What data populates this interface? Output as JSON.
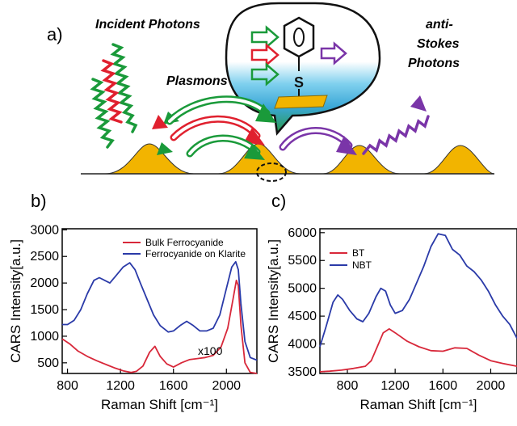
{
  "panel_a": {
    "label": "a)",
    "incident": "Incident Photons",
    "plasmons": "Plasmons",
    "anti_1": "anti-",
    "anti_2": "Stokes",
    "anti_3": "Photons",
    "linker": "S",
    "colors": {
      "green": "#1a9a3a",
      "red": "#e0202e",
      "purple": "#7a35a8",
      "gold": "#f2b400"
    }
  },
  "chart_data": [
    {
      "type": "line",
      "panel": "b)",
      "xlabel": "Raman Shift [cm⁻¹]",
      "ylabel": "CARS Intensity[a.u.]",
      "xlim": [
        760,
        2230
      ],
      "ylim": [
        300,
        3020
      ],
      "xticks": [
        "800",
        "1200",
        "1600",
        "2000"
      ],
      "yticks": [
        "500",
        "1000",
        "1500",
        "2000",
        "2500",
        "3000"
      ],
      "xtick_values": [
        800,
        1200,
        1600,
        2000
      ],
      "ytick_values": [
        500,
        1000,
        1500,
        2000,
        2500,
        3000
      ],
      "legend": "top-right",
      "annotation": "x100",
      "series": [
        {
          "name": "Bulk Ferrocyanide",
          "color": "#d8283a",
          "x": [
            760,
            820,
            880,
            950,
            1020,
            1100,
            1160,
            1220,
            1280,
            1320,
            1370,
            1420,
            1460,
            1500,
            1550,
            1600,
            1660,
            1720,
            1780,
            1840,
            1900,
            1960,
            2010,
            2050,
            2075,
            2090,
            2110,
            2140,
            2180,
            2230
          ],
          "y": [
            950,
            850,
            720,
            620,
            540,
            460,
            400,
            350,
            320,
            340,
            440,
            700,
            810,
            620,
            480,
            420,
            500,
            560,
            580,
            600,
            640,
            800,
            1150,
            1700,
            2050,
            1950,
            1200,
            500,
            320,
            300
          ]
        },
        {
          "name": "Ferrocyanide on Klarite",
          "color": "#2a3aa8",
          "x": [
            760,
            800,
            850,
            900,
            950,
            1000,
            1040,
            1080,
            1120,
            1170,
            1220,
            1270,
            1310,
            1350,
            1400,
            1450,
            1500,
            1560,
            1600,
            1650,
            1700,
            1750,
            1800,
            1850,
            1900,
            1950,
            2000,
            2040,
            2070,
            2090,
            2110,
            2140,
            2180,
            2230
          ],
          "y": [
            1220,
            1220,
            1300,
            1500,
            1800,
            2050,
            2100,
            2050,
            2000,
            2150,
            2300,
            2380,
            2250,
            2000,
            1700,
            1400,
            1200,
            1080,
            1100,
            1200,
            1280,
            1200,
            1100,
            1100,
            1150,
            1400,
            1900,
            2300,
            2400,
            2250,
            1600,
            900,
            600,
            550
          ]
        }
      ]
    },
    {
      "type": "line",
      "panel": "c)",
      "xlabel": "Raman Shift [cm⁻¹]",
      "ylabel": "CARS Intensity[a.u.]",
      "xlim": [
        570,
        2220
      ],
      "ylim": [
        3470,
        6070
      ],
      "xticks": [
        "800",
        "1200",
        "1600",
        "2000"
      ],
      "yticks": [
        "3500",
        "4000",
        "4500",
        "5000",
        "5500",
        "6000"
      ],
      "xtick_values": [
        800,
        1200,
        1600,
        2000
      ],
      "ytick_values": [
        3500,
        4000,
        4500,
        5000,
        5500,
        6000
      ],
      "legend": "top-left",
      "series": [
        {
          "name": "BT",
          "color": "#d8283a",
          "x": [
            570,
            650,
            750,
            850,
            950,
            1000,
            1050,
            1100,
            1150,
            1200,
            1300,
            1400,
            1500,
            1600,
            1700,
            1800,
            1900,
            2000,
            2100,
            2220
          ],
          "y": [
            3500,
            3510,
            3530,
            3560,
            3600,
            3700,
            3950,
            4200,
            4270,
            4200,
            4050,
            3950,
            3880,
            3870,
            3930,
            3920,
            3800,
            3700,
            3650,
            3600
          ]
        },
        {
          "name": "NBT",
          "color": "#2a3aa8",
          "x": [
            570,
            620,
            680,
            720,
            760,
            820,
            880,
            930,
            980,
            1040,
            1080,
            1120,
            1160,
            1200,
            1260,
            1320,
            1380,
            1440,
            1500,
            1560,
            1620,
            1680,
            1740,
            1800,
            1860,
            1920,
            1980,
            2040,
            2100,
            2160,
            2220
          ],
          "y": [
            3950,
            4300,
            4750,
            4880,
            4800,
            4600,
            4450,
            4400,
            4550,
            4850,
            5000,
            4950,
            4700,
            4550,
            4600,
            4800,
            5100,
            5400,
            5750,
            5980,
            5950,
            5700,
            5600,
            5400,
            5300,
            5150,
            4950,
            4700,
            4500,
            4350,
            4100
          ]
        }
      ]
    }
  ]
}
